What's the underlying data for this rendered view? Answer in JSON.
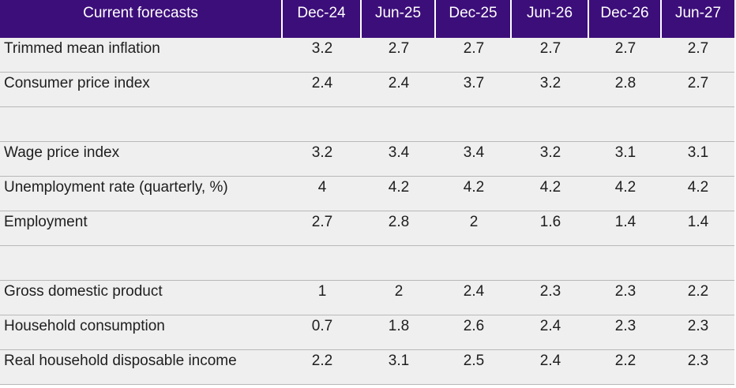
{
  "chart_data": {
    "type": "table",
    "header": [
      "Current forecasts",
      "Dec-24",
      "Jun-25",
      "Dec-25",
      "Jun-26",
      "Dec-26",
      "Jun-27"
    ],
    "rows": [
      {
        "label": "Trimmed mean inflation",
        "values": [
          "3.2",
          "2.7",
          "2.7",
          "2.7",
          "2.7",
          "2.7"
        ]
      },
      {
        "label": "Consumer price index",
        "values": [
          "2.4",
          "2.4",
          "3.7",
          "3.2",
          "2.8",
          "2.7"
        ]
      },
      {
        "label": "",
        "values": [
          "",
          "",
          "",
          "",
          "",
          ""
        ]
      },
      {
        "label": "Wage price index",
        "values": [
          "3.2",
          "3.4",
          "3.4",
          "3.2",
          "3.1",
          "3.1"
        ]
      },
      {
        "label": "Unemployment rate (quarterly, %)",
        "values": [
          "4",
          "4.2",
          "4.2",
          "4.2",
          "4.2",
          "4.2"
        ]
      },
      {
        "label": "Employment",
        "values": [
          "2.7",
          "2.8",
          "2",
          "1.6",
          "1.4",
          "1.4"
        ]
      },
      {
        "label": "",
        "values": [
          "",
          "",
          "",
          "",
          "",
          ""
        ]
      },
      {
        "label": "Gross domestic product",
        "values": [
          "1",
          "2",
          "2.4",
          "2.3",
          "2.3",
          "2.2"
        ]
      },
      {
        "label": "Household consumption",
        "values": [
          "0.7",
          "1.8",
          "2.6",
          "2.4",
          "2.3",
          "2.3"
        ]
      },
      {
        "label": "Real household disposable income",
        "values": [
          "2.2",
          "3.1",
          "2.5",
          "2.4",
          "2.2",
          "2.3"
        ]
      }
    ]
  },
  "colors": {
    "header_bg": "#3c0e7a",
    "header_text": "#ffffff",
    "row_bg": "#efefef",
    "rule": "#b8b8b8"
  }
}
